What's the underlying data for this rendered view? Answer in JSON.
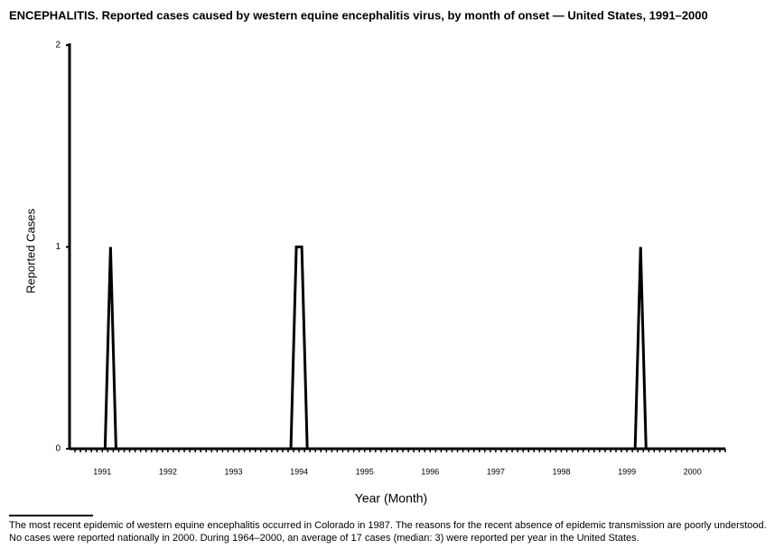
{
  "chart_data": {
    "type": "line",
    "title": "ENCEPHALITIS. Reported cases caused by western equine encephalitis virus, by month of onset — United States, 1991–2000",
    "x_label": "Year (Month)",
    "y_label": "Reported Cases",
    "categories": [
      null,
      null,
      null,
      null,
      null,
      null,
      "1991",
      null,
      null,
      null,
      null,
      null,
      null,
      null,
      null,
      null,
      null,
      null,
      "1992",
      null,
      null,
      null,
      null,
      null,
      null,
      null,
      null,
      null,
      null,
      null,
      "1993",
      null,
      null,
      null,
      null,
      null,
      null,
      null,
      null,
      null,
      null,
      null,
      "1994",
      null,
      null,
      null,
      null,
      null,
      null,
      null,
      null,
      null,
      null,
      null,
      "1995",
      null,
      null,
      null,
      null,
      null,
      null,
      null,
      null,
      null,
      null,
      null,
      "1996",
      null,
      null,
      null,
      null,
      null,
      null,
      null,
      null,
      null,
      null,
      null,
      "1997",
      null,
      null,
      null,
      null,
      null,
      null,
      null,
      null,
      null,
      null,
      null,
      "1998",
      null,
      null,
      null,
      null,
      null,
      null,
      null,
      null,
      null,
      null,
      null,
      "1999",
      null,
      null,
      null,
      null,
      null,
      null,
      null,
      null,
      null,
      null,
      null,
      "2000",
      null,
      null,
      null,
      null,
      null
    ],
    "values": [
      0,
      0,
      0,
      0,
      0,
      0,
      0,
      1,
      0,
      0,
      0,
      0,
      0,
      0,
      0,
      0,
      0,
      0,
      0,
      0,
      0,
      0,
      0,
      0,
      0,
      0,
      0,
      0,
      0,
      0,
      0,
      0,
      0,
      0,
      0,
      0,
      0,
      0,
      0,
      0,
      0,
      1,
      1,
      0,
      0,
      0,
      0,
      0,
      0,
      0,
      0,
      0,
      0,
      0,
      0,
      0,
      0,
      0,
      0,
      0,
      0,
      0,
      0,
      0,
      0,
      0,
      0,
      0,
      0,
      0,
      0,
      0,
      0,
      0,
      0,
      0,
      0,
      0,
      0,
      0,
      0,
      0,
      0,
      0,
      0,
      0,
      0,
      0,
      0,
      0,
      0,
      0,
      0,
      0,
      0,
      0,
      0,
      0,
      0,
      0,
      0,
      0,
      0,
      0,
      1,
      0,
      0,
      0,
      0,
      0,
      0,
      0,
      0,
      0,
      0,
      0,
      0,
      0,
      0,
      0
    ],
    "color": "#000000",
    "ylim": [
      0,
      2
    ],
    "yticks": [
      0,
      1,
      2
    ],
    "grid": false
  },
  "footnote": "The most recent epidemic of western equine encephalitis occurred in Colorado in 1987. The reasons for the recent absence of epidemic transmission are poorly understood. No cases were reported nationally in 2000. During 1964–2000, an average of 17 cases (median: 3) were reported per year in the United States."
}
